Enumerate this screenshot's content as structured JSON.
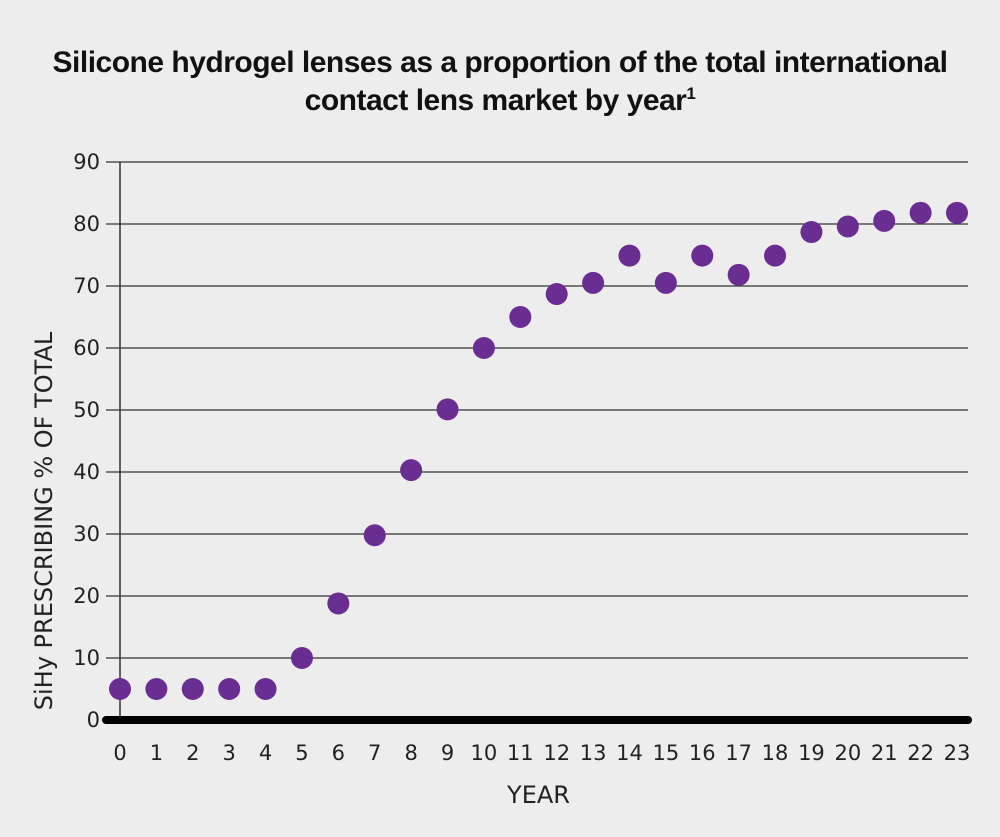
{
  "chart_data": {
    "type": "scatter",
    "title_lines": [
      "Silicone hydrogel lenses as a proportion of the total international",
      "contact lens market by year"
    ],
    "title_superscript": "1",
    "xlabel": "YEAR",
    "ylabel": "SiHy PRESCRIBING % OF TOTAL",
    "xlim": [
      0,
      23
    ],
    "ylim": [
      0,
      90
    ],
    "x_ticks": [
      0,
      1,
      2,
      3,
      4,
      5,
      6,
      7,
      8,
      9,
      10,
      11,
      12,
      13,
      14,
      15,
      16,
      17,
      18,
      19,
      20,
      21,
      22,
      23
    ],
    "y_ticks": [
      0,
      10,
      20,
      30,
      40,
      50,
      60,
      70,
      80,
      90
    ],
    "grid": "horizontal",
    "legend": "none",
    "series": [
      {
        "color": "#6a2d91",
        "points": [
          {
            "x": 0,
            "y": 5
          },
          {
            "x": 1,
            "y": 5
          },
          {
            "x": 2,
            "y": 5
          },
          {
            "x": 3,
            "y": 5
          },
          {
            "x": 4,
            "y": 5
          },
          {
            "x": 5,
            "y": 10
          },
          {
            "x": 6,
            "y": 18.8
          },
          {
            "x": 7,
            "y": 29.8
          },
          {
            "x": 8,
            "y": 40.3
          },
          {
            "x": 9,
            "y": 50.1
          },
          {
            "x": 10,
            "y": 60
          },
          {
            "x": 11,
            "y": 65
          },
          {
            "x": 12,
            "y": 68.7
          },
          {
            "x": 13,
            "y": 70.5
          },
          {
            "x": 14,
            "y": 74.9
          },
          {
            "x": 15,
            "y": 70.5
          },
          {
            "x": 16,
            "y": 74.9
          },
          {
            "x": 17,
            "y": 71.8
          },
          {
            "x": 18,
            "y": 74.9
          },
          {
            "x": 19,
            "y": 78.7
          },
          {
            "x": 20,
            "y": 79.6
          },
          {
            "x": 21,
            "y": 80.5
          },
          {
            "x": 22,
            "y": 81.8
          },
          {
            "x": 23,
            "y": 81.8
          }
        ]
      }
    ]
  }
}
